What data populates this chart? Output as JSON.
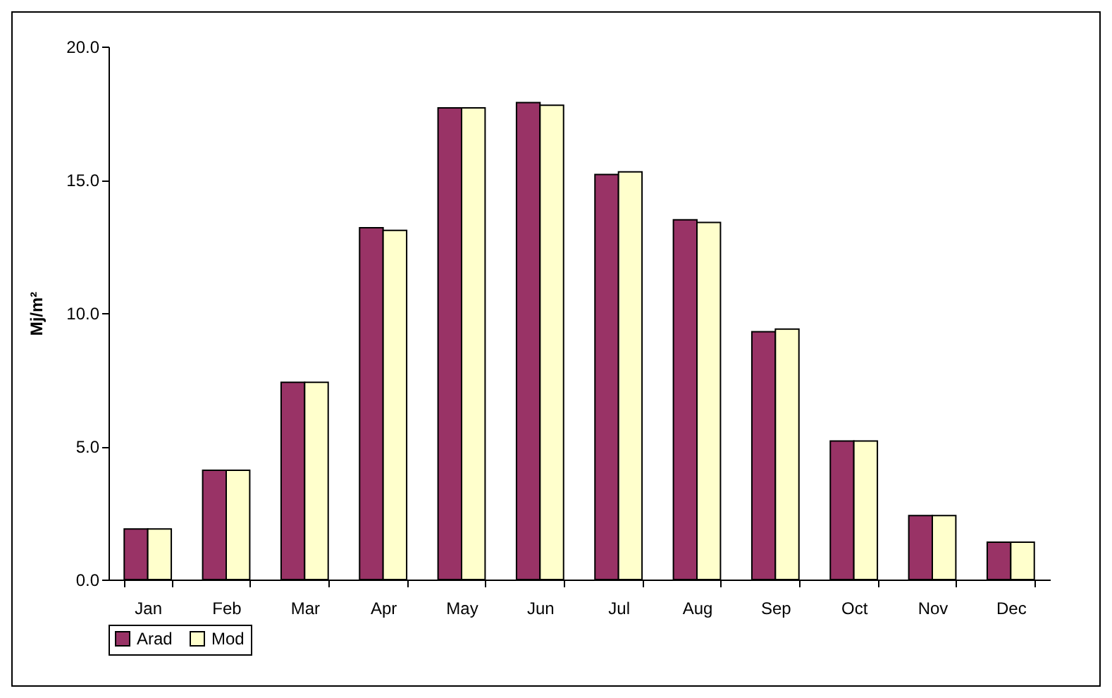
{
  "chart_data": {
    "type": "bar",
    "ylabel": "Mj/m²",
    "categories": [
      "Jan",
      "Feb",
      "Mar",
      "Apr",
      "May",
      "Jun",
      "Jul",
      "Aug",
      "Sep",
      "Oct",
      "Nov",
      "Dec"
    ],
    "series": [
      {
        "name": "Arad",
        "color": "#993366",
        "values": [
          1.9,
          4.1,
          7.4,
          13.2,
          17.7,
          17.9,
          15.2,
          13.5,
          9.3,
          5.2,
          2.4,
          1.4
        ]
      },
      {
        "name": "Mod",
        "color": "#ffffcc",
        "values": [
          1.9,
          4.1,
          7.4,
          13.1,
          17.7,
          17.8,
          15.3,
          13.4,
          9.4,
          5.2,
          2.4,
          1.4
        ]
      }
    ],
    "ylim": [
      0,
      20
    ],
    "yticks": [
      {
        "value": 0,
        "label": "0.0"
      },
      {
        "value": 5,
        "label": "5.0"
      },
      {
        "value": 10,
        "label": "10.0"
      },
      {
        "value": 15,
        "label": "15.0"
      },
      {
        "value": 20,
        "label": "20.0"
      }
    ],
    "grid": false,
    "legend": "bottom"
  }
}
